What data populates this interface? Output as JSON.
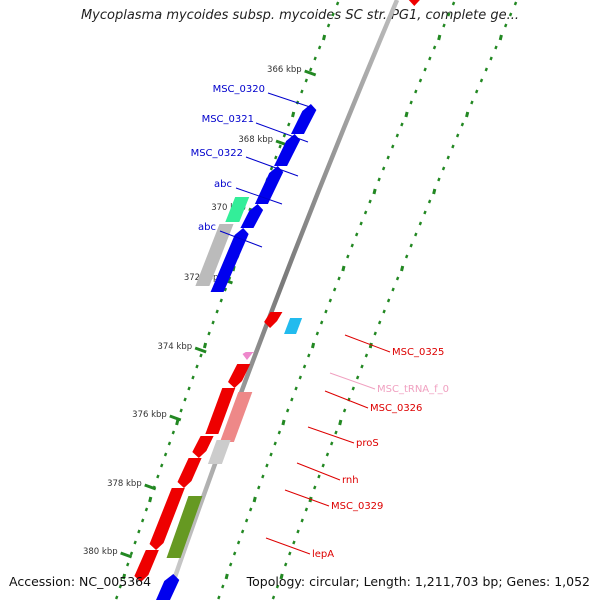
{
  "title": "Mycoplasma mycoides subsp. mycoides SC str. PG1, complete ge...",
  "footer": {
    "accession": "Accession: NC_005364",
    "topology": "Topology: circular; Length: 1,211,703 bp; Genes: 1,052"
  },
  "scale_labels": [
    "366 kbp",
    "368 kbp",
    "370 kbp",
    "372 kbp",
    "374 kbp",
    "376 kbp",
    "378 kbp",
    "380 kbp"
  ],
  "gene_labels_forward": [
    {
      "text": "MSC_0320",
      "color": "#0000cc"
    },
    {
      "text": "MSC_0321",
      "color": "#0000cc"
    },
    {
      "text": "MSC_0322",
      "color": "#0000cc"
    },
    {
      "text": "abc",
      "color": "#0000cc"
    },
    {
      "text": "abc",
      "color": "#0000cc"
    }
  ],
  "gene_labels_reverse": [
    {
      "text": "MSC_0325",
      "color": "#dd0000"
    },
    {
      "text": "MSC_tRNA_f_0",
      "color": "#f0a0c0"
    },
    {
      "text": "MSC_0326",
      "color": "#dd0000"
    },
    {
      "text": "proS",
      "color": "#dd0000"
    },
    {
      "text": "rnh",
      "color": "#dd0000"
    },
    {
      "text": "MSC_0329",
      "color": "#dd0000"
    },
    {
      "text": "lepA",
      "color": "#dd0000"
    }
  ],
  "colors": {
    "forward_cds": "#0000ee",
    "reverse_cds": "#ee0000",
    "forward_gene": "#33ee99",
    "reverse_gene": "#ee8888",
    "trna": "#ee88cc",
    "misc": "#22bbee",
    "other": "#669922",
    "backbone": "#888888",
    "dots": "#228822",
    "label_text": "#333333"
  }
}
